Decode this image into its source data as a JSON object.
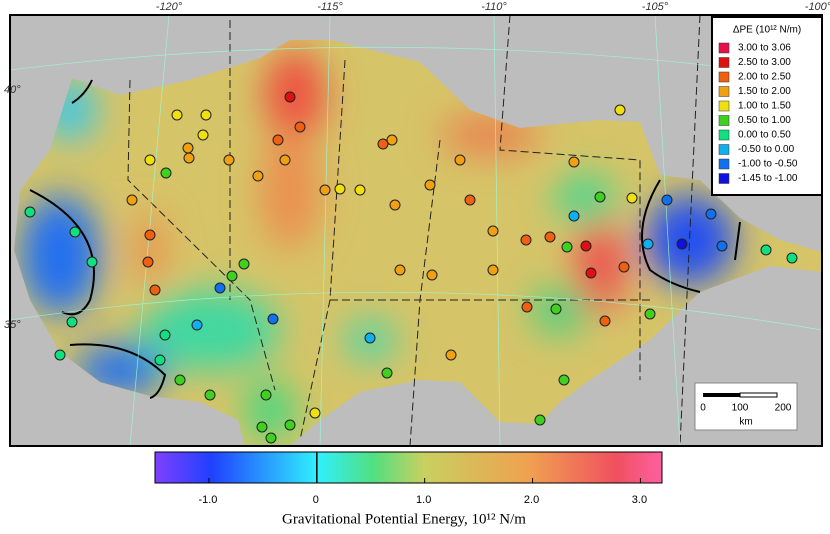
{
  "map": {
    "lon_labels": [
      "-120°",
      "-115°",
      "-110°",
      "-105°",
      "-100°"
    ],
    "lat_labels": [
      "40°",
      "35°"
    ]
  },
  "legend": {
    "title": "ΔPE (10¹² N/m)",
    "entries": [
      {
        "range": "3.00  to  3.06",
        "color": "#e8104a"
      },
      {
        "range": "2.50  to  3.00",
        "color": "#e01010"
      },
      {
        "range": "2.00  to  2.50",
        "color": "#f06010"
      },
      {
        "range": "1.50  to  2.00",
        "color": "#f0a010"
      },
      {
        "range": "1.00  to  1.50",
        "color": "#f0e010"
      },
      {
        "range": "0.50  to  1.00",
        "color": "#40d020"
      },
      {
        "range": "0.00  to  0.50",
        "color": "#10e080"
      },
      {
        "range": "-0.50  to  0.00",
        "color": "#10b0f0"
      },
      {
        "range": "-1.00  to  -0.50",
        "color": "#1070f0"
      },
      {
        "range": "-1.45  to  -1.00",
        "color": "#1010e0"
      }
    ]
  },
  "colorbar": {
    "label": "Gravitational Potential Energy, 10¹² N/m",
    "lim": [
      -1.5,
      3.2
    ],
    "ticks": [
      {
        "value": -1,
        "label": "-1.0"
      },
      0,
      {
        "value": 1,
        "label": "1.0"
      },
      {
        "value": 2,
        "label": "2.0"
      },
      {
        "value": 3,
        "label": "3.0"
      }
    ]
  },
  "scale_bar": {
    "labels": [
      "0",
      "100",
      "200"
    ],
    "unit": "km"
  }
}
